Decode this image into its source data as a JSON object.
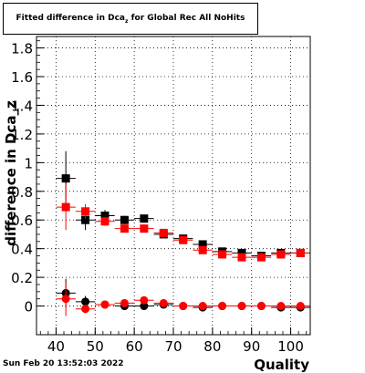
{
  "title": "Fitted difference in Dca",
  "title_sub": "z",
  "title_suffix": " for Global Rec All NoHits",
  "footer": "Sun Feb 20 13:52:03 2022",
  "colors": {
    "series1": "#000000",
    "series2": "#ff0000",
    "grid": "#000000"
  },
  "chart_data": {
    "type": "scatter",
    "title": "Fitted difference in Dca_z for Global Rec All NoHits",
    "xlabel": "Quality",
    "ylabel": "difference in Dca_z",
    "xlim": [
      35,
      105
    ],
    "ylim": [
      -0.2,
      1.88
    ],
    "xticks": [
      40,
      50,
      60,
      70,
      80,
      90,
      100
    ],
    "yticks": [
      0,
      0.2,
      0.4,
      0.6,
      0.8,
      1,
      1.2,
      1.4,
      1.6,
      1.8
    ],
    "ytick_labels": [
      "0",
      "0.2",
      "0.4",
      "0.6",
      "0.8",
      "1",
      "1.2",
      "1.4",
      "1.6",
      "1.8"
    ],
    "grid": true,
    "x_bin_half_width": 2.5,
    "series": [
      {
        "color": "#000000",
        "marker": "square",
        "points": [
          {
            "x": 42.5,
            "y": 0.89,
            "err": 0.19
          },
          {
            "x": 47.5,
            "y": 0.6,
            "err": 0.07
          },
          {
            "x": 52.5,
            "y": 0.63,
            "err": 0.04
          },
          {
            "x": 57.5,
            "y": 0.6,
            "err": 0.03
          },
          {
            "x": 62.5,
            "y": 0.61,
            "err": 0.02
          },
          {
            "x": 67.5,
            "y": 0.5,
            "err": 0.02
          },
          {
            "x": 72.5,
            "y": 0.47,
            "err": 0.01
          },
          {
            "x": 77.5,
            "y": 0.43,
            "err": 0.01
          },
          {
            "x": 82.5,
            "y": 0.38,
            "err": 0.01
          },
          {
            "x": 87.5,
            "y": 0.37,
            "err": 0.01
          },
          {
            "x": 92.5,
            "y": 0.35,
            "err": 0.01
          },
          {
            "x": 97.5,
            "y": 0.37,
            "err": 0.01
          },
          {
            "x": 102.5,
            "y": 0.37,
            "err": 0.01
          }
        ]
      },
      {
        "color": "#ff0000",
        "marker": "square",
        "points": [
          {
            "x": 42.5,
            "y": 0.69,
            "err": 0.16
          },
          {
            "x": 47.5,
            "y": 0.66,
            "err": 0.05
          },
          {
            "x": 52.5,
            "y": 0.59,
            "err": 0.03
          },
          {
            "x": 57.5,
            "y": 0.54,
            "err": 0.02
          },
          {
            "x": 62.5,
            "y": 0.54,
            "err": 0.02
          },
          {
            "x": 67.5,
            "y": 0.51,
            "err": 0.02
          },
          {
            "x": 72.5,
            "y": 0.46,
            "err": 0.01
          },
          {
            "x": 77.5,
            "y": 0.39,
            "err": 0.01
          },
          {
            "x": 82.5,
            "y": 0.36,
            "err": 0.01
          },
          {
            "x": 87.5,
            "y": 0.34,
            "err": 0.01
          },
          {
            "x": 92.5,
            "y": 0.34,
            "err": 0.01
          },
          {
            "x": 97.5,
            "y": 0.36,
            "err": 0.01
          },
          {
            "x": 102.5,
            "y": 0.37,
            "err": 0.01
          }
        ]
      },
      {
        "color": "#000000",
        "marker": "circle",
        "points": [
          {
            "x": 42.5,
            "y": 0.09,
            "err": 0.1
          },
          {
            "x": 47.5,
            "y": 0.03,
            "err": 0.04
          },
          {
            "x": 52.5,
            "y": 0.01,
            "err": 0.02
          },
          {
            "x": 57.5,
            "y": 0.0,
            "err": 0.02
          },
          {
            "x": 62.5,
            "y": 0.0,
            "err": 0.01
          },
          {
            "x": 67.5,
            "y": 0.01,
            "err": 0.01
          },
          {
            "x": 72.5,
            "y": 0.0,
            "err": 0.01
          },
          {
            "x": 77.5,
            "y": -0.01,
            "err": 0.01
          },
          {
            "x": 82.5,
            "y": 0.0,
            "err": 0.01
          },
          {
            "x": 87.5,
            "y": 0.0,
            "err": 0.01
          },
          {
            "x": 92.5,
            "y": 0.0,
            "err": 0.01
          },
          {
            "x": 97.5,
            "y": -0.01,
            "err": 0.01
          },
          {
            "x": 102.5,
            "y": -0.01,
            "err": 0.01
          }
        ]
      },
      {
        "color": "#ff0000",
        "marker": "circle",
        "points": [
          {
            "x": 42.5,
            "y": 0.05,
            "err": 0.12
          },
          {
            "x": 47.5,
            "y": -0.02,
            "err": 0.03
          },
          {
            "x": 52.5,
            "y": 0.01,
            "err": 0.02
          },
          {
            "x": 57.5,
            "y": 0.02,
            "err": 0.02
          },
          {
            "x": 62.5,
            "y": 0.04,
            "err": 0.02
          },
          {
            "x": 67.5,
            "y": 0.02,
            "err": 0.01
          },
          {
            "x": 72.5,
            "y": 0.0,
            "err": 0.01
          },
          {
            "x": 77.5,
            "y": 0.0,
            "err": 0.01
          },
          {
            "x": 82.5,
            "y": 0.0,
            "err": 0.01
          },
          {
            "x": 87.5,
            "y": 0.0,
            "err": 0.01
          },
          {
            "x": 92.5,
            "y": 0.0,
            "err": 0.01
          },
          {
            "x": 97.5,
            "y": 0.0,
            "err": 0.01
          },
          {
            "x": 102.5,
            "y": 0.0,
            "err": 0.01
          }
        ]
      }
    ]
  }
}
